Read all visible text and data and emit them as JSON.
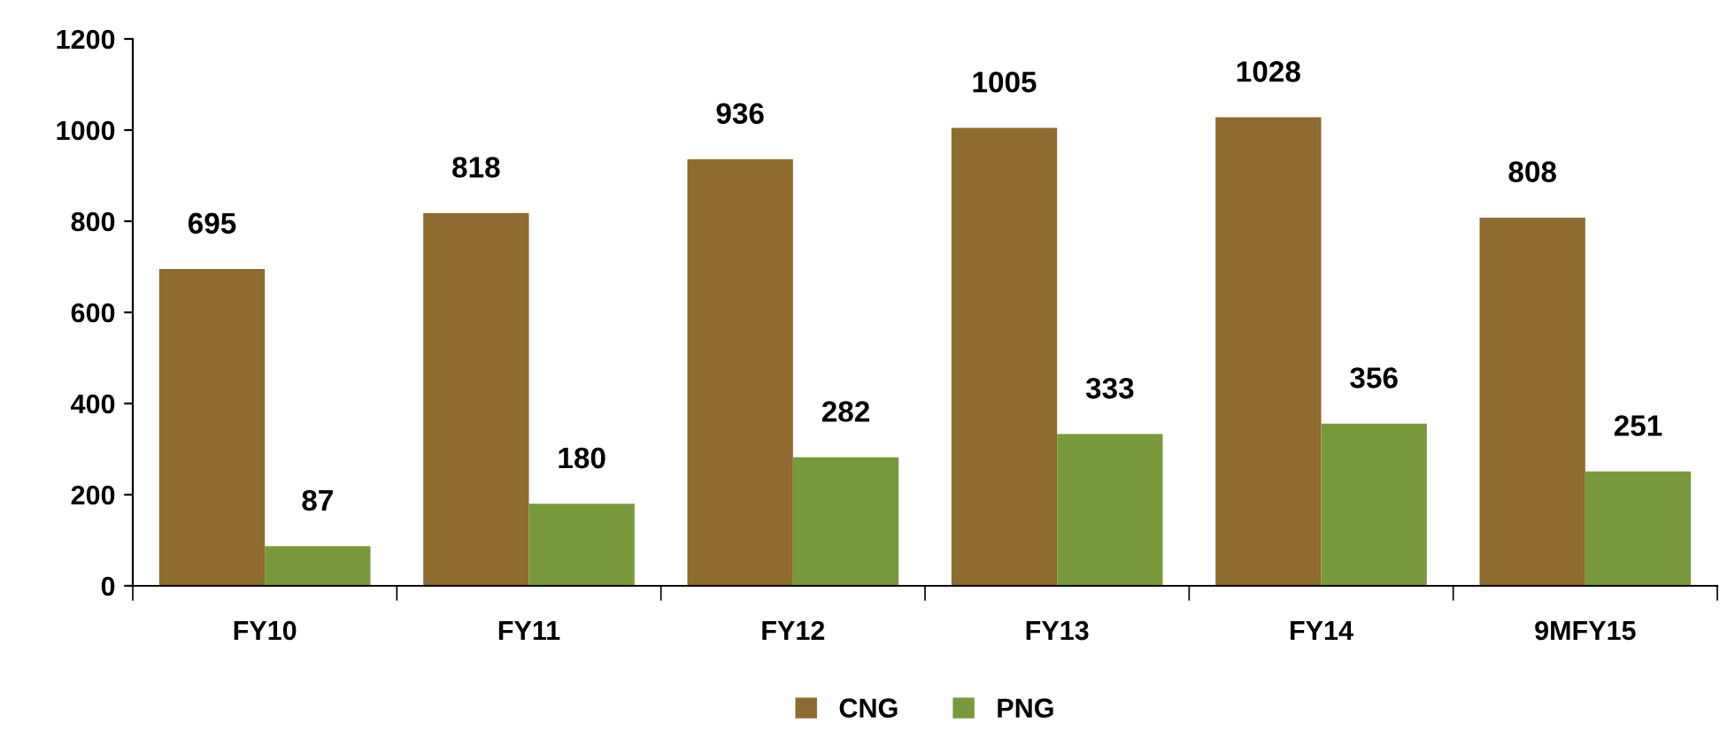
{
  "chart_data": {
    "type": "bar",
    "categories": [
      "FY10",
      "FY11",
      "FY12",
      "FY13",
      "FY14",
      "9MFY15"
    ],
    "series": [
      {
        "name": "CNG",
        "color": "#8e6b2f",
        "values": [
          695,
          818,
          936,
          1005,
          1028,
          808
        ]
      },
      {
        "name": "PNG",
        "color": "#789a3c",
        "values": [
          87,
          180,
          282,
          333,
          356,
          251
        ]
      }
    ],
    "ylim": [
      0,
      1200
    ],
    "yticks": [
      0,
      200,
      400,
      600,
      800,
      1000,
      1200
    ],
    "data_labels": true,
    "legend": "bottom",
    "grid": false
  }
}
